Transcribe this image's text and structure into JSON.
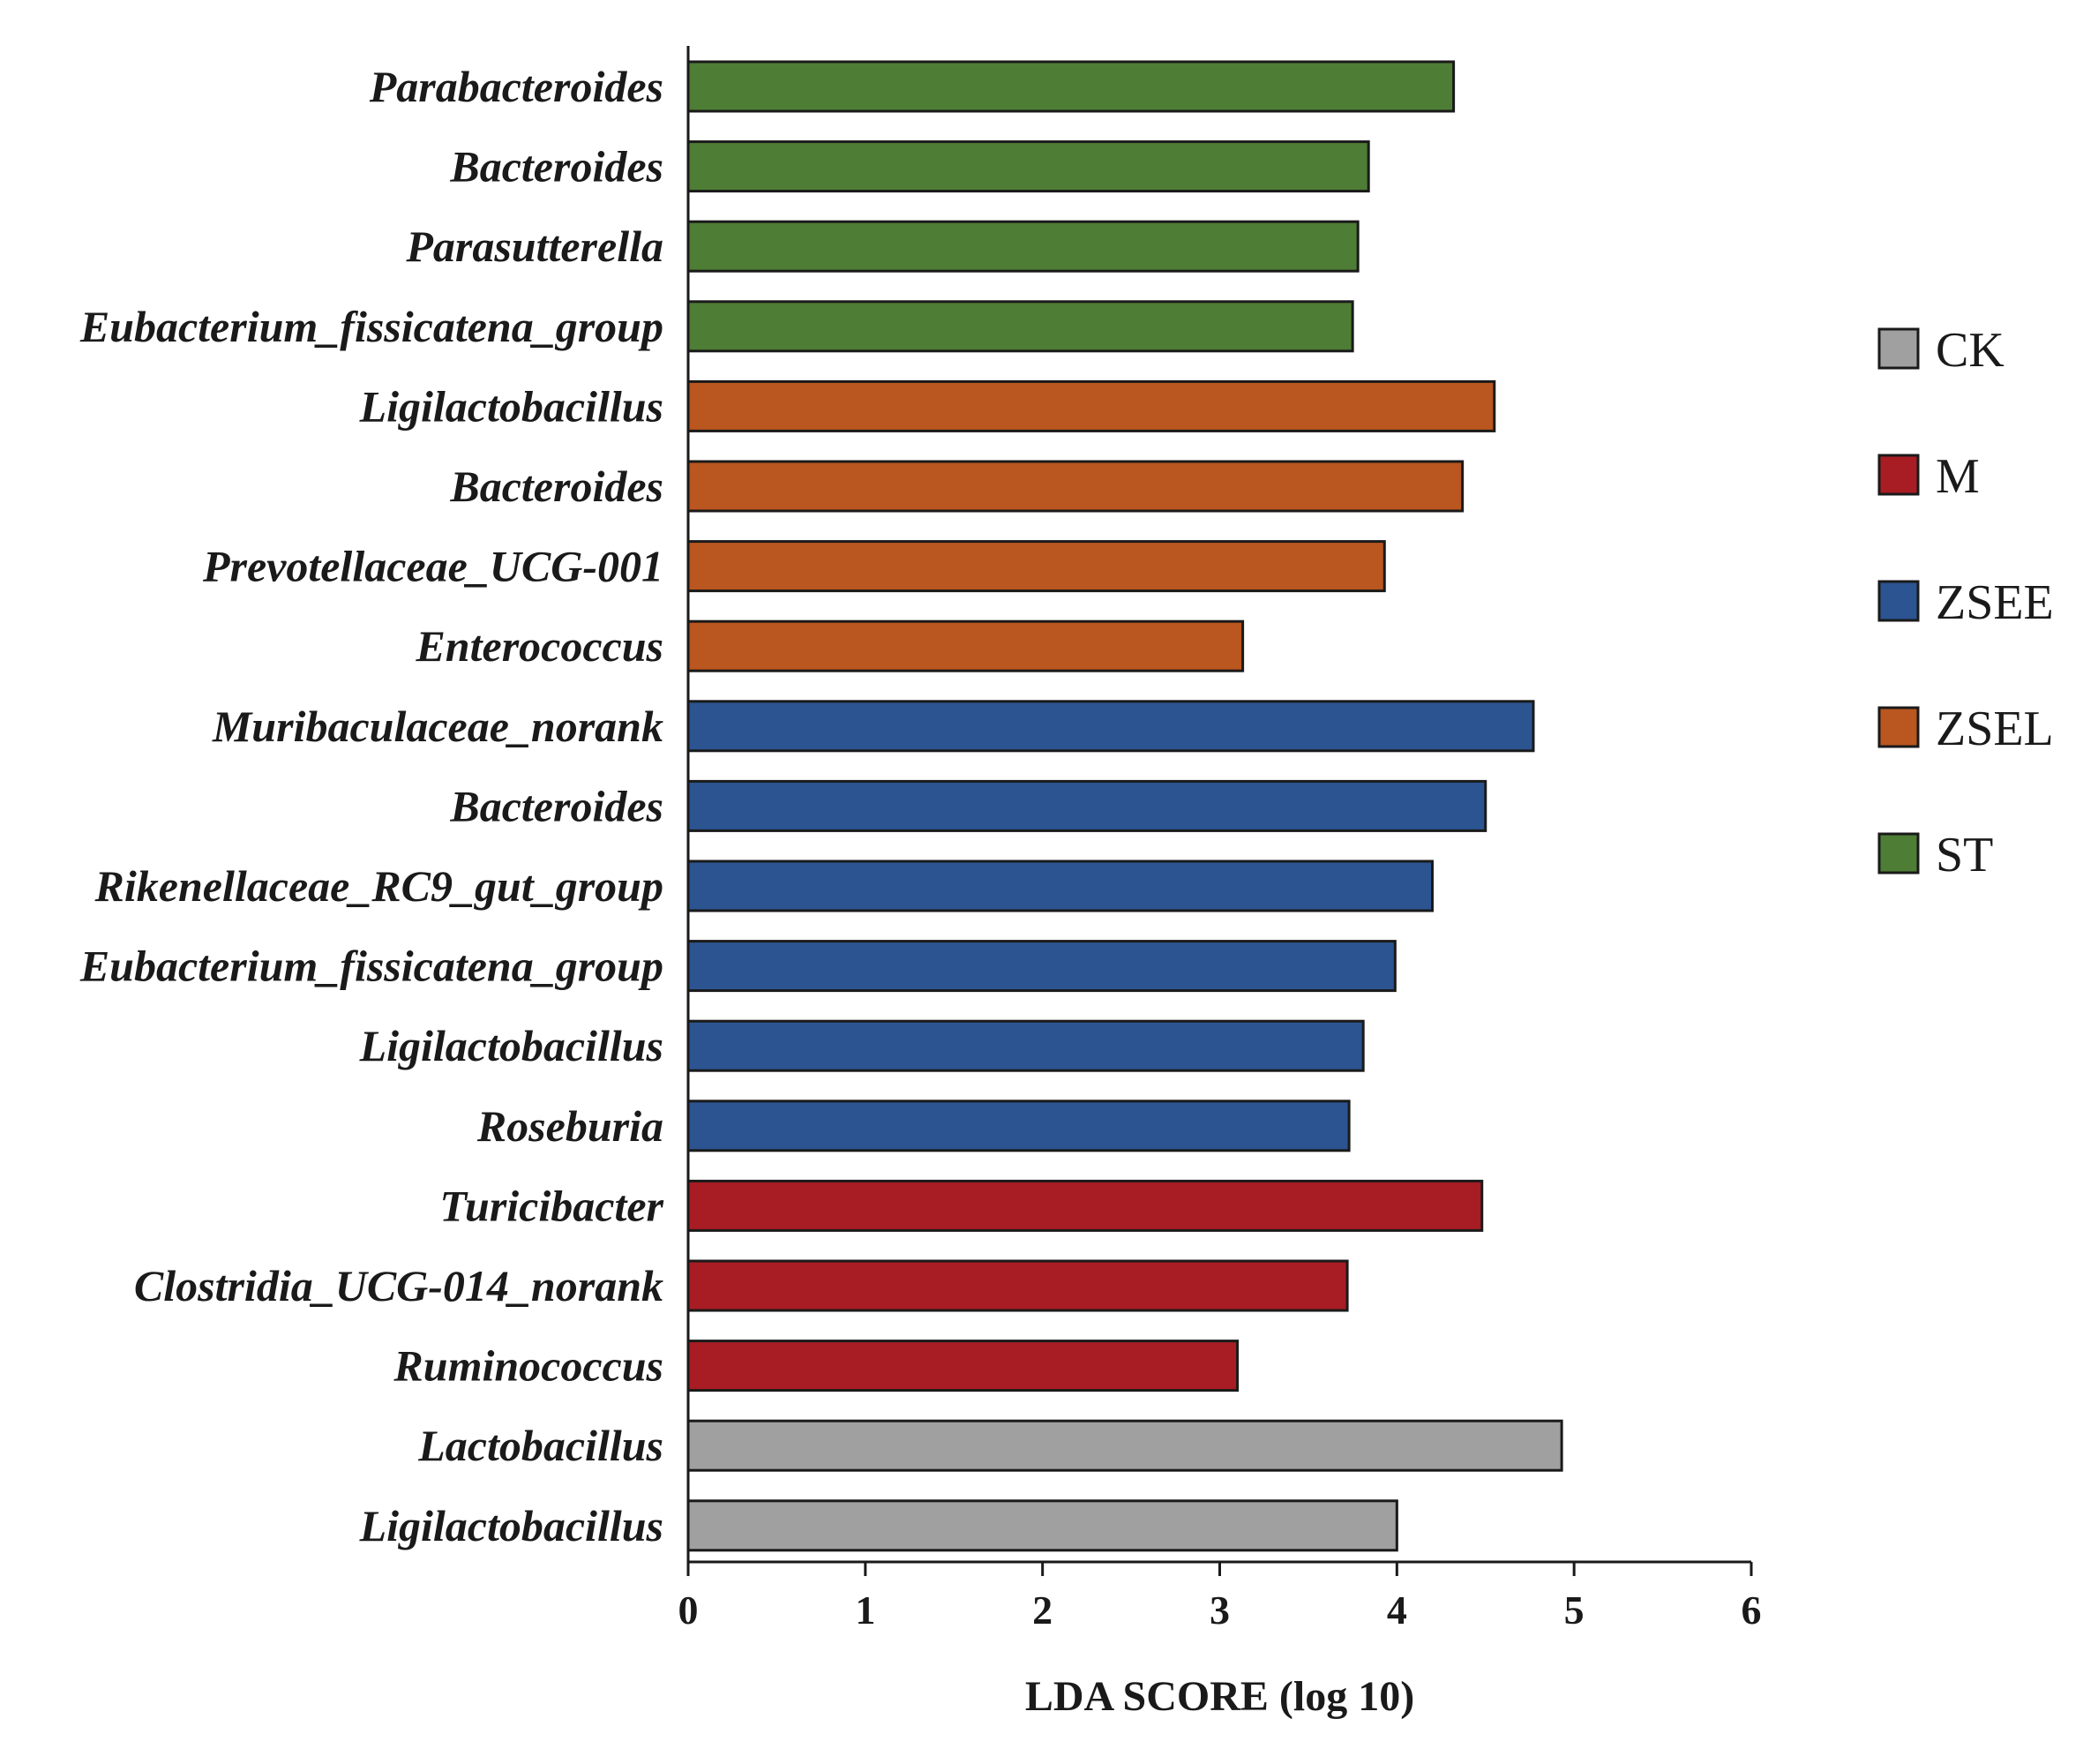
{
  "chart_data": {
    "type": "bar",
    "orientation": "horizontal",
    "title": "",
    "xlabel": "LDA SCORE (log 10)",
    "ylabel": "",
    "xlim": [
      0,
      6
    ],
    "xticks": [
      "0",
      "1",
      "2",
      "3",
      "4",
      "5",
      "6"
    ],
    "grid": false,
    "legend_position": "right",
    "groups": [
      {
        "name": "CK",
        "color": "#a0a0a0"
      },
      {
        "name": "M",
        "color": "#a81c24"
      },
      {
        "name": "ZSEE",
        "color": "#2c5491"
      },
      {
        "name": "ZSEL",
        "color": "#ba561f"
      },
      {
        "name": "ST",
        "color": "#4e7d35"
      }
    ],
    "bars": [
      {
        "label": "Parabacteroides",
        "value": 4.32,
        "group": "ST"
      },
      {
        "label": "Bacteroides",
        "value": 3.84,
        "group": "ST"
      },
      {
        "label": "Parasutterella",
        "value": 3.78,
        "group": "ST"
      },
      {
        "label": "Eubacterium_fissicatena_group",
        "value": 3.75,
        "group": "ST"
      },
      {
        "label": "Ligilactobacillus",
        "value": 4.55,
        "group": "ZSEL"
      },
      {
        "label": "Bacteroides",
        "value": 4.37,
        "group": "ZSEL"
      },
      {
        "label": "Prevotellaceae_UCG-001",
        "value": 3.93,
        "group": "ZSEL"
      },
      {
        "label": "Enterococcus",
        "value": 3.13,
        "group": "ZSEL"
      },
      {
        "label": "Muribaculaceae_norank",
        "value": 4.77,
        "group": "ZSEE"
      },
      {
        "label": "Bacteroides",
        "value": 4.5,
        "group": "ZSEE"
      },
      {
        "label": "Rikenellaceae_RC9_gut_group",
        "value": 4.2,
        "group": "ZSEE"
      },
      {
        "label": "Eubacterium_fissicatena_group",
        "value": 3.99,
        "group": "ZSEE"
      },
      {
        "label": "Ligilactobacillus",
        "value": 3.81,
        "group": "ZSEE"
      },
      {
        "label": "Roseburia",
        "value": 3.73,
        "group": "ZSEE"
      },
      {
        "label": "Turicibacter",
        "value": 4.48,
        "group": "M"
      },
      {
        "label": "Clostridia_UCG-014_norank",
        "value": 3.72,
        "group": "M"
      },
      {
        "label": "Ruminococcus",
        "value": 3.1,
        "group": "M"
      },
      {
        "label": "Lactobacillus",
        "value": 4.93,
        "group": "CK"
      },
      {
        "label": "Ligilactobacillus",
        "value": 4.0,
        "group": "CK"
      }
    ]
  }
}
